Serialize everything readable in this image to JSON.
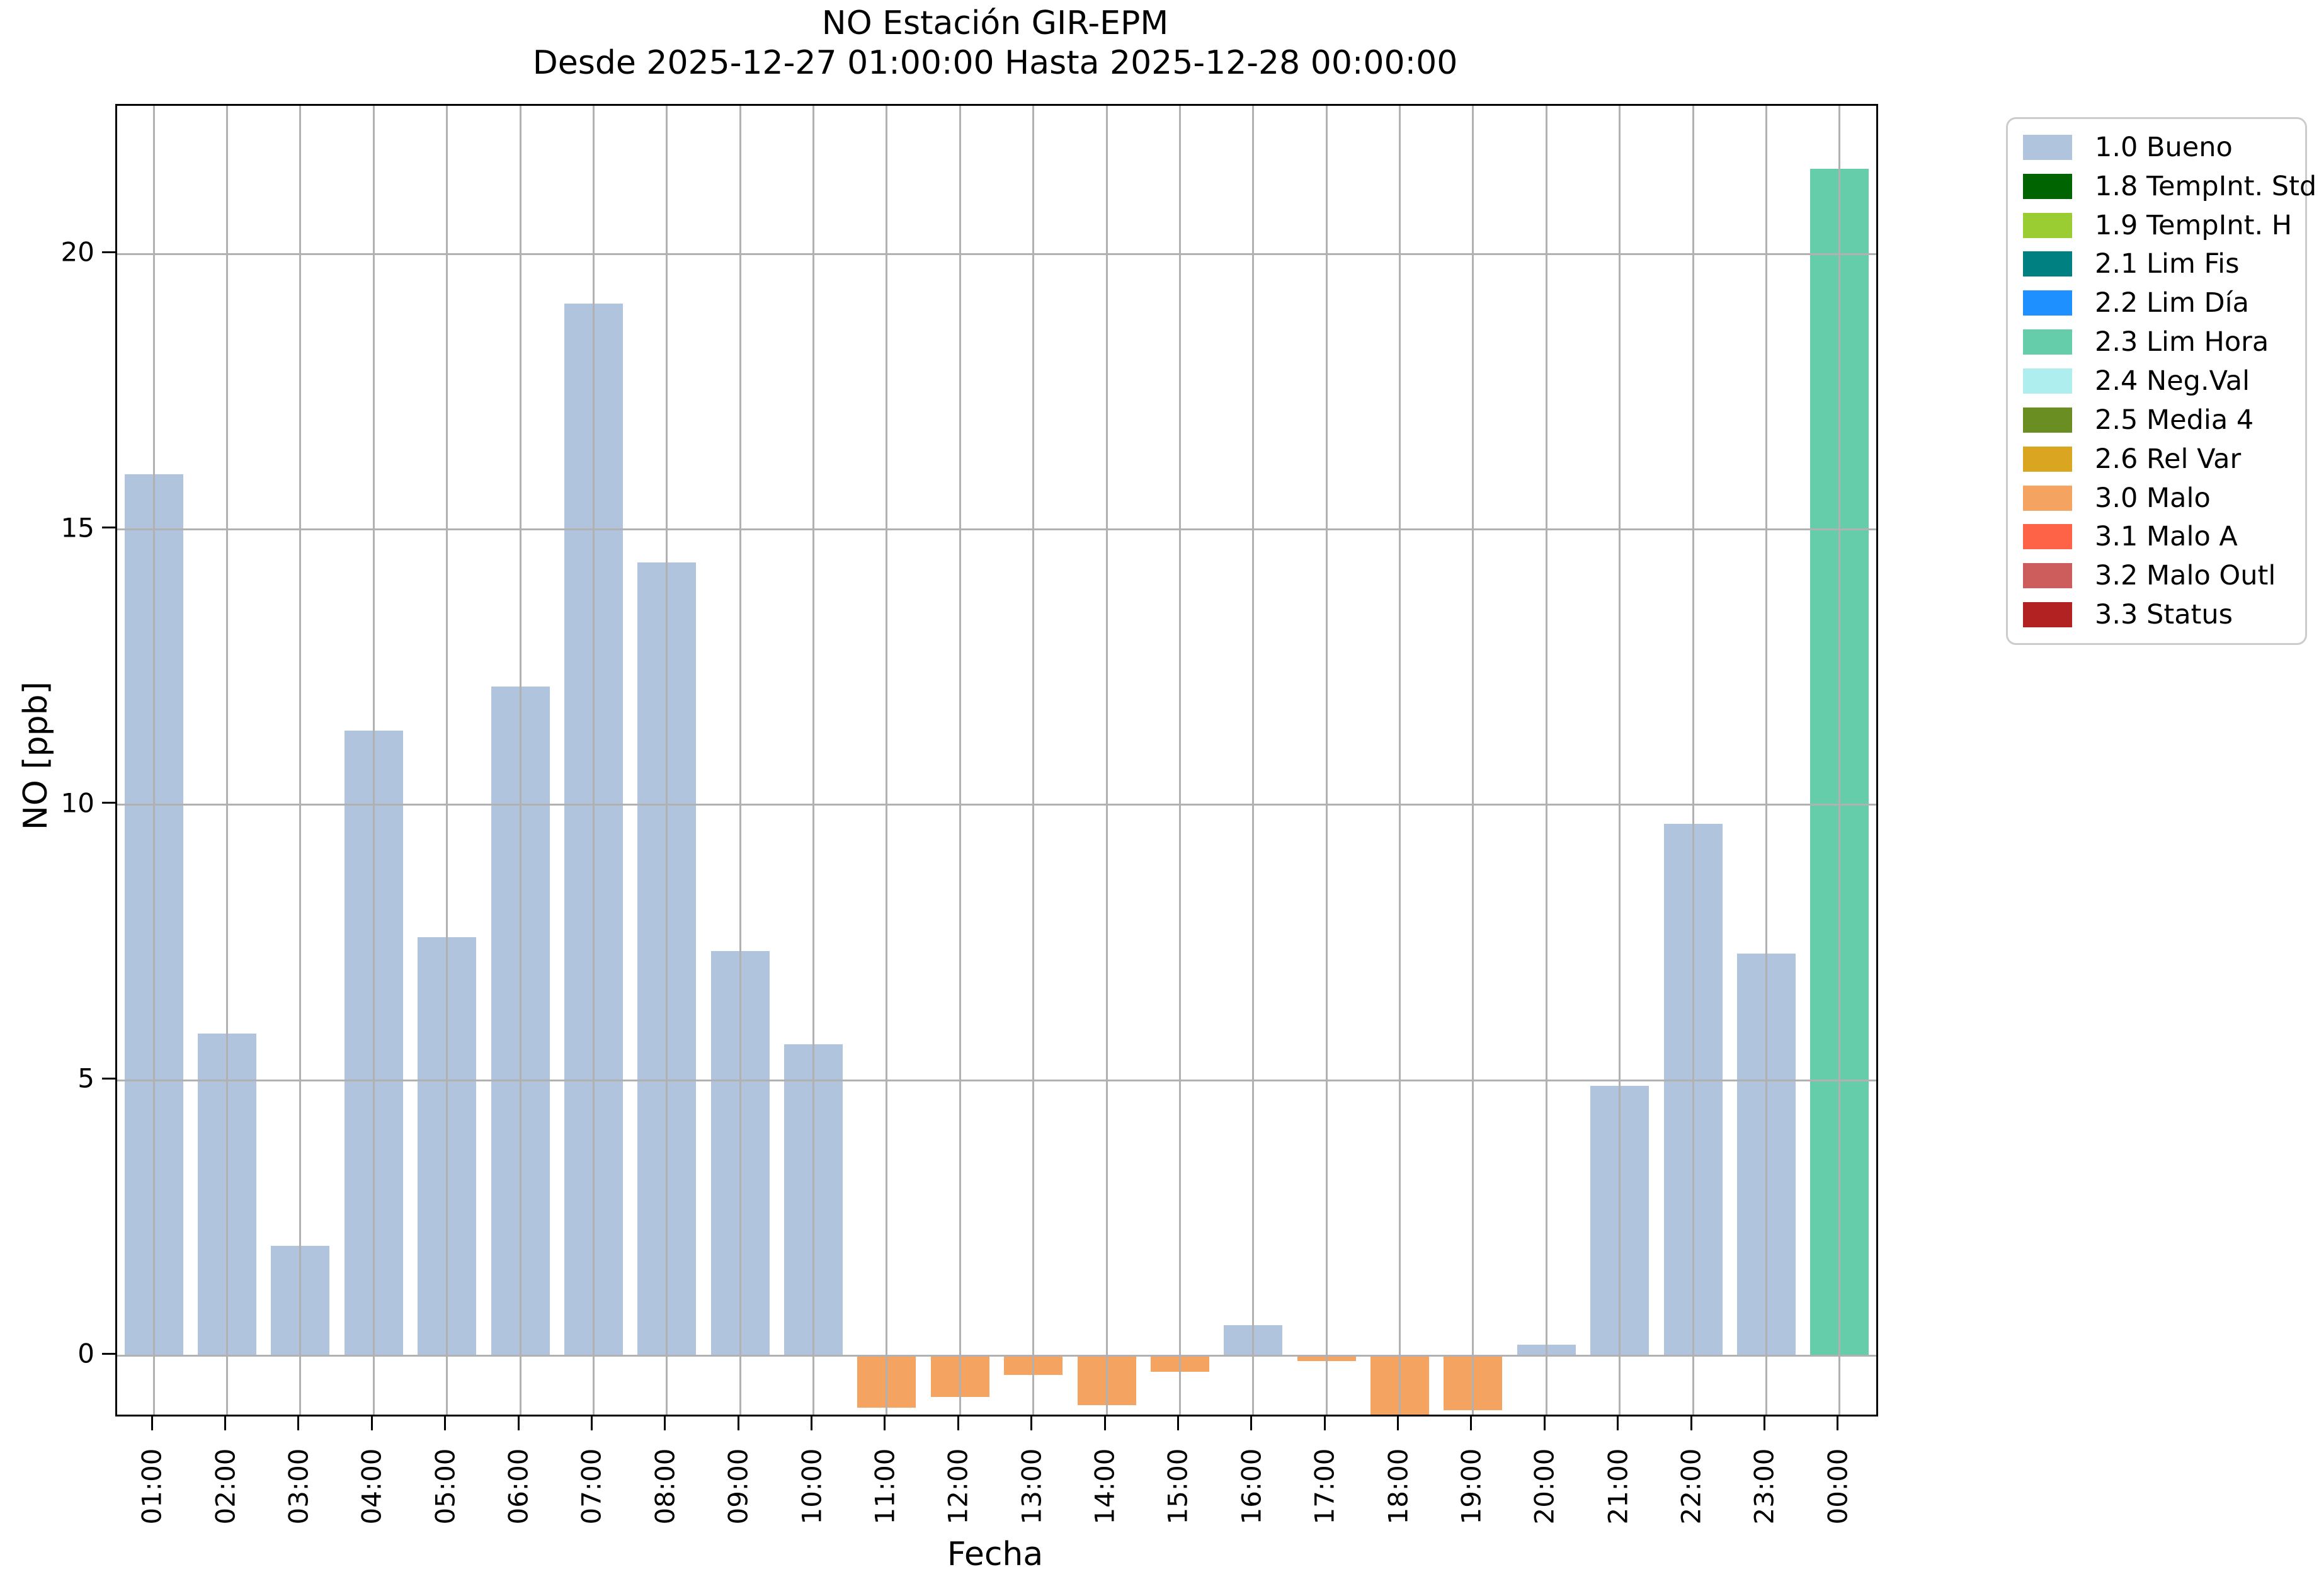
{
  "title": {
    "line1": "NO Estación GIR-EPM",
    "line2": "Desde 2025-12-27 01:00:00 Hasta 2025-12-28 00:00:00"
  },
  "axes": {
    "xlabel": "Fecha",
    "ylabel": "NO [ppb]",
    "yticks": [
      0,
      5,
      10,
      15,
      20
    ]
  },
  "legend": {
    "entries": [
      {
        "label": "1.0 Bueno",
        "color": "#b0c4de"
      },
      {
        "label": "1.8 TempInt. Std",
        "color": "#006400"
      },
      {
        "label": "1.9 TempInt. H",
        "color": "#9acd32"
      },
      {
        "label": "2.1 Lim Fis",
        "color": "#008080"
      },
      {
        "label": "2.2 Lim Día",
        "color": "#1e90ff"
      },
      {
        "label": "2.3 Lim Hora",
        "color": "#66cdaa"
      },
      {
        "label": "2.4 Neg.Val",
        "color": "#afeeee"
      },
      {
        "label": "2.5 Media 4",
        "color": "#6b8e23"
      },
      {
        "label": "2.6 Rel Var",
        "color": "#daa520"
      },
      {
        "label": "3.0 Malo",
        "color": "#f4a460"
      },
      {
        "label": "3.1 Malo A",
        "color": "#ff6347"
      },
      {
        "label": "3.2 Malo Outl",
        "color": "#cd5c5c"
      },
      {
        "label": "3.3 Status",
        "color": "#b22222"
      }
    ]
  },
  "chart_data": {
    "type": "bar",
    "title": "NO Estación GIR-EPM",
    "subtitle": "Desde 2025-12-27 01:00:00 Hasta 2025-12-28 00:00:00",
    "xlabel": "Fecha",
    "ylabel": "NO [ppb]",
    "ylim": [
      -1.07,
      22.69
    ],
    "yticks": [
      0,
      5,
      10,
      15,
      20
    ],
    "grid": true,
    "legend_position": "outside-upper-right",
    "categories": [
      "01:00",
      "02:00",
      "03:00",
      "04:00",
      "05:00",
      "06:00",
      "07:00",
      "08:00",
      "09:00",
      "10:00",
      "11:00",
      "12:00",
      "13:00",
      "14:00",
      "15:00",
      "16:00",
      "17:00",
      "18:00",
      "19:00",
      "20:00",
      "21:00",
      "22:00",
      "23:00",
      "00:00"
    ],
    "values": [
      16.0,
      5.85,
      2.0,
      11.35,
      7.6,
      12.15,
      19.1,
      14.4,
      7.35,
      5.65,
      -0.95,
      -0.75,
      -0.35,
      -0.9,
      -0.3,
      0.55,
      -0.1,
      -1.1,
      -1.0,
      0.2,
      4.9,
      9.65,
      7.3,
      21.55
    ],
    "flags": [
      "1.0 Bueno",
      "1.0 Bueno",
      "1.0 Bueno",
      "1.0 Bueno",
      "1.0 Bueno",
      "1.0 Bueno",
      "1.0 Bueno",
      "1.0 Bueno",
      "1.0 Bueno",
      "1.0 Bueno",
      "3.0 Malo",
      "3.0 Malo",
      "3.0 Malo",
      "3.0 Malo",
      "3.0 Malo",
      "1.0 Bueno",
      "3.0 Malo",
      "3.0 Malo",
      "3.0 Malo",
      "1.0 Bueno",
      "1.0 Bueno",
      "1.0 Bueno",
      "1.0 Bueno",
      "2.3 Lim Hora"
    ],
    "note": "18:00 bar is clipped at the bottom edge of the axes"
  }
}
